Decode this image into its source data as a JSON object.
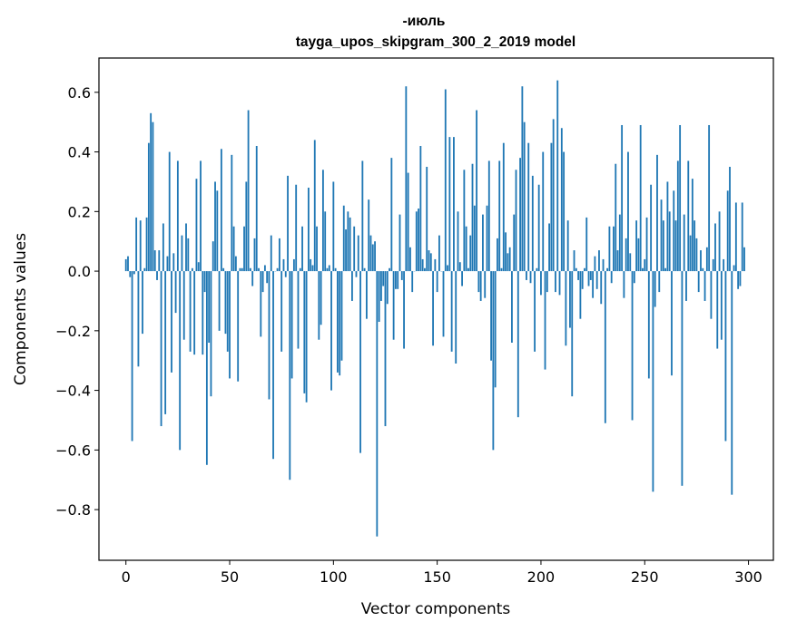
{
  "chart_data": {
    "type": "bar",
    "title_line1": "-июль",
    "title_line2": "tayga_upos_skipgram_300_2_2019 model",
    "xlabel": "Vector components",
    "ylabel": "Components values",
    "xlim": [
      -13,
      312
    ],
    "ylim": [
      -0.97,
      0.715
    ],
    "xticks": [
      0,
      50,
      100,
      150,
      200,
      250,
      300
    ],
    "xtick_labels": [
      "0",
      "50",
      "100",
      "150",
      "200",
      "250",
      "300"
    ],
    "yticks": [
      -0.8,
      -0.6,
      -0.4,
      -0.2,
      0.0,
      0.2,
      0.4,
      0.6
    ],
    "ytick_labels": [
      "−0.8",
      "−0.6",
      "−0.4",
      "−0.2",
      "0.0",
      "0.2",
      "0.4",
      "0.6"
    ],
    "bar_color": "#1f77b4",
    "values": [
      0.04,
      0.05,
      -0.02,
      -0.57,
      -0.01,
      0.18,
      -0.32,
      0.17,
      -0.21,
      0.01,
      0.18,
      0.43,
      0.53,
      0.5,
      0.07,
      -0.03,
      0.07,
      -0.52,
      0.16,
      -0.48,
      0.05,
      0.4,
      -0.34,
      0.06,
      -0.14,
      0.37,
      -0.6,
      0.12,
      -0.23,
      0.16,
      0.11,
      -0.27,
      0.01,
      -0.28,
      0.31,
      0.03,
      0.37,
      -0.28,
      -0.07,
      -0.65,
      -0.24,
      -0.42,
      0.1,
      0.3,
      0.27,
      -0.2,
      0.41,
      0.01,
      -0.21,
      -0.27,
      -0.36,
      0.39,
      0.15,
      0.05,
      -0.37,
      0.01,
      0.01,
      0.15,
      0.3,
      0.54,
      0.01,
      -0.05,
      0.11,
      0.42,
      0.01,
      -0.22,
      -0.07,
      0.02,
      -0.04,
      -0.43,
      0.12,
      -0.63,
      0.0,
      0.01,
      0.11,
      -0.27,
      0.04,
      -0.02,
      0.32,
      -0.7,
      -0.36,
      0.04,
      0.29,
      -0.26,
      0.01,
      0.15,
      -0.41,
      -0.44,
      0.28,
      0.04,
      0.02,
      0.44,
      0.15,
      -0.23,
      -0.18,
      0.34,
      0.2,
      0.01,
      0.02,
      -0.4,
      0.3,
      0.01,
      -0.34,
      -0.35,
      -0.3,
      0.22,
      0.14,
      0.2,
      0.18,
      -0.1,
      0.15,
      -0.02,
      0.12,
      -0.61,
      0.37,
      0.01,
      -0.16,
      0.24,
      0.12,
      0.09,
      0.1,
      -0.89,
      -0.17,
      -0.1,
      -0.05,
      -0.52,
      -0.11,
      0.01,
      0.38,
      -0.23,
      -0.06,
      -0.06,
      0.19,
      -0.03,
      -0.26,
      0.62,
      0.33,
      0.08,
      -0.07,
      0.0,
      0.2,
      0.21,
      0.42,
      0.04,
      0.01,
      0.35,
      0.07,
      0.06,
      -0.25,
      0.04,
      -0.07,
      0.12,
      0.0,
      -0.22,
      0.61,
      0.02,
      0.45,
      -0.27,
      0.45,
      -0.31,
      0.2,
      0.03,
      -0.05,
      0.34,
      0.15,
      0.01,
      0.12,
      0.36,
      0.22,
      0.54,
      -0.07,
      -0.1,
      0.19,
      -0.09,
      0.22,
      0.37,
      -0.3,
      -0.6,
      -0.39,
      0.11,
      0.37,
      0.01,
      0.43,
      0.13,
      0.06,
      0.08,
      -0.24,
      0.19,
      0.34,
      -0.49,
      0.38,
      0.62,
      0.5,
      -0.03,
      0.43,
      -0.04,
      0.32,
      -0.27,
      0.01,
      0.29,
      -0.08,
      0.4,
      -0.33,
      -0.07,
      0.16,
      0.43,
      0.51,
      -0.07,
      0.64,
      -0.08,
      0.48,
      0.4,
      -0.25,
      0.17,
      -0.19,
      -0.42,
      0.07,
      0.01,
      -0.03,
      -0.16,
      -0.06,
      0.01,
      0.18,
      -0.05,
      -0.03,
      -0.09,
      0.05,
      -0.06,
      0.07,
      -0.11,
      0.04,
      -0.51,
      0.01,
      0.15,
      -0.04,
      0.15,
      0.36,
      0.07,
      0.19,
      0.49,
      -0.09,
      0.11,
      0.4,
      0.06,
      -0.5,
      -0.04,
      0.17,
      0.11,
      0.49,
      0.01,
      0.04,
      0.18,
      -0.36,
      0.29,
      -0.74,
      -0.12,
      0.39,
      -0.07,
      0.24,
      0.17,
      0.01,
      0.3,
      0.2,
      -0.35,
      0.27,
      0.17,
      0.37,
      0.49,
      -0.72,
      0.19,
      -0.1,
      0.37,
      0.12,
      0.31,
      0.17,
      0.11,
      -0.07,
      0.07,
      0.01,
      -0.1,
      0.08,
      0.49,
      -0.16,
      0.04,
      0.16,
      -0.26,
      0.2,
      -0.23,
      0.04,
      -0.57,
      0.27,
      0.35,
      -0.75,
      0.02,
      0.23,
      -0.06,
      -0.05,
      0.23,
      0.08
    ]
  }
}
